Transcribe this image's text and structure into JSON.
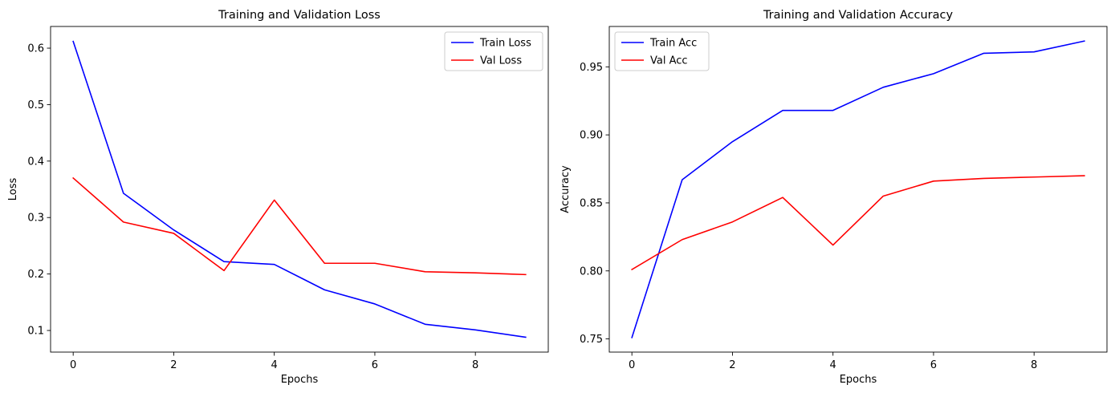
{
  "chart_data": [
    {
      "type": "line",
      "title": "Training and Validation Loss",
      "xlabel": "Epochs",
      "ylabel": "Loss",
      "x": [
        0,
        1,
        2,
        3,
        4,
        5,
        6,
        7,
        8,
        9
      ],
      "xlim": [
        -0.45,
        9.45
      ],
      "ylim": [
        0.0617,
        0.6384
      ],
      "xticks": [
        0,
        2,
        4,
        6,
        8
      ],
      "yticks": [
        0.1,
        0.2,
        0.3,
        0.4,
        0.5,
        0.6
      ],
      "xtick_labels": [
        "0",
        "2",
        "4",
        "6",
        "8"
      ],
      "ytick_labels": [
        "0.1",
        "0.2",
        "0.3",
        "0.4",
        "0.5",
        "0.6"
      ],
      "grid": false,
      "legend": "top-right",
      "series": [
        {
          "name": "Train Loss",
          "color": "#0000ff",
          "values": [
            0.612,
            0.343,
            0.278,
            0.222,
            0.217,
            0.172,
            0.147,
            0.111,
            0.101,
            0.088
          ]
        },
        {
          "name": "Val Loss",
          "color": "#ff0000",
          "values": [
            0.37,
            0.292,
            0.272,
            0.206,
            0.331,
            0.219,
            0.219,
            0.204,
            0.202,
            0.199
          ]
        }
      ]
    },
    {
      "type": "line",
      "title": "Training and Validation Accuracy",
      "xlabel": "Epochs",
      "ylabel": "Accuracy",
      "x": [
        0,
        1,
        2,
        3,
        4,
        5,
        6,
        7,
        8,
        9
      ],
      "xlim": [
        -0.45,
        9.45
      ],
      "ylim": [
        0.7403,
        0.9797
      ],
      "xticks": [
        0,
        2,
        4,
        6,
        8
      ],
      "yticks": [
        0.75,
        0.8,
        0.85,
        0.9,
        0.95
      ],
      "xtick_labels": [
        "0",
        "2",
        "4",
        "6",
        "8"
      ],
      "ytick_labels": [
        "0.75",
        "0.80",
        "0.85",
        "0.90",
        "0.95"
      ],
      "grid": false,
      "legend": "top-left",
      "series": [
        {
          "name": "Train Acc",
          "color": "#0000ff",
          "values": [
            0.751,
            0.867,
            0.895,
            0.918,
            0.918,
            0.935,
            0.945,
            0.96,
            0.961,
            0.969
          ]
        },
        {
          "name": "Val Acc",
          "color": "#ff0000",
          "values": [
            0.801,
            0.823,
            0.836,
            0.854,
            0.819,
            0.855,
            0.866,
            0.868,
            0.869,
            0.87
          ]
        }
      ]
    }
  ]
}
